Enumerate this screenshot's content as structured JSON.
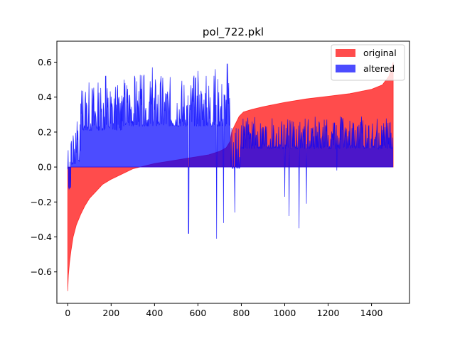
{
  "chart_data": {
    "type": "area",
    "title": "pol_722.pkl",
    "xlabel": "",
    "ylabel": "",
    "xlim": [
      -50,
      1575
    ],
    "ylim": [
      -0.78,
      0.72
    ],
    "x_ticks": [
      0,
      200,
      400,
      600,
      800,
      1000,
      1200,
      1400
    ],
    "y_ticks": [
      -0.6,
      -0.4,
      -0.2,
      0.0,
      0.2,
      0.4,
      0.6
    ],
    "y_tick_labels": [
      "−0.6",
      "−0.4",
      "−0.2",
      "0.0",
      "0.2",
      "0.4",
      "0.6"
    ],
    "grid": false,
    "legend_position": "top-right",
    "series": [
      {
        "name": "original",
        "color": "#ff0000",
        "alpha": 0.7,
        "points": [
          [
            0,
            -0.71
          ],
          [
            3,
            -0.62
          ],
          [
            8,
            -0.55
          ],
          [
            15,
            -0.48
          ],
          [
            25,
            -0.4
          ],
          [
            40,
            -0.33
          ],
          [
            60,
            -0.27
          ],
          [
            80,
            -0.22
          ],
          [
            100,
            -0.18
          ],
          [
            130,
            -0.14
          ],
          [
            160,
            -0.1
          ],
          [
            200,
            -0.07
          ],
          [
            250,
            -0.04
          ],
          [
            300,
            -0.01
          ],
          [
            350,
            0.005
          ],
          [
            400,
            0.02
          ],
          [
            450,
            0.03
          ],
          [
            500,
            0.04
          ],
          [
            550,
            0.05
          ],
          [
            600,
            0.06
          ],
          [
            650,
            0.07
          ],
          [
            700,
            0.09
          ],
          [
            730,
            0.11
          ],
          [
            750,
            0.15
          ],
          [
            755,
            0.2
          ],
          [
            770,
            0.24
          ],
          [
            790,
            0.29
          ],
          [
            810,
            0.315
          ],
          [
            850,
            0.33
          ],
          [
            900,
            0.345
          ],
          [
            1000,
            0.37
          ],
          [
            1100,
            0.39
          ],
          [
            1200,
            0.405
          ],
          [
            1300,
            0.42
          ],
          [
            1400,
            0.445
          ],
          [
            1450,
            0.47
          ],
          [
            1480,
            0.52
          ],
          [
            1495,
            0.58
          ],
          [
            1500,
            0.6
          ]
        ]
      },
      {
        "name": "altered",
        "color": "#0000ff",
        "alpha": 0.7,
        "segments": [
          {
            "x_start": 0,
            "x_end": 15,
            "low": -0.25,
            "high": 0.1,
            "seed": 11
          },
          {
            "x_start": 15,
            "x_end": 60,
            "low": -0.1,
            "high": 0.22,
            "seed": 12
          },
          {
            "x_start": 60,
            "x_end": 250,
            "low": 0.08,
            "high": 0.45,
            "seed": 13
          },
          {
            "x_start": 250,
            "x_end": 750,
            "low": 0.1,
            "high": 0.48,
            "seed": 14
          },
          {
            "x_start": 750,
            "x_end": 800,
            "low": -0.12,
            "high": 0.2,
            "seed": 15
          },
          {
            "x_start": 800,
            "x_end": 1500,
            "low": 0.02,
            "high": 0.26,
            "seed": 16
          }
        ],
        "peaks": [
          [
            390,
            0.57
          ],
          [
            600,
            0.55
          ],
          [
            680,
            0.56
          ],
          [
            735,
            0.59
          ],
          [
            175,
            0.52
          ]
        ],
        "dips": [
          [
            557,
            -0.38
          ],
          [
            686,
            -0.41
          ],
          [
            718,
            -0.32
          ],
          [
            770,
            -0.26
          ],
          [
            1000,
            -0.17
          ],
          [
            1020,
            -0.28
          ],
          [
            1066,
            -0.35
          ],
          [
            1100,
            -0.21
          ],
          [
            1240,
            -0.02
          ]
        ]
      }
    ]
  }
}
